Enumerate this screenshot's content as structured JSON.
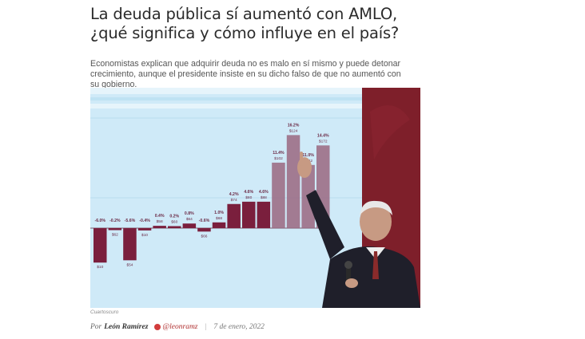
{
  "article": {
    "headline": "La deuda pública sí aumentó con AMLO, ¿qué significa y cómo influye en el país?",
    "summary": "Economistas explican que adquirir deuda no es malo en sí mismo y puede detonar crecimiento, aunque el presidente insiste en su dicho falso de que no aumentó con su gobierno.",
    "photo": {
      "caption": "Cuartoscuro",
      "chart_labels": [
        {
          "pct": "-6.0%",
          "val": "$10"
        },
        {
          "pct": "-0.2%",
          "val": "$62"
        },
        {
          "pct": "-5.6%",
          "val": "$54"
        },
        {
          "pct": "-0.4%",
          "val": "$10"
        },
        {
          "pct": "0.4%",
          "val": "$58"
        },
        {
          "pct": "0.2%",
          "val": "$60"
        },
        {
          "pct": "0.8%",
          "val": "$64"
        },
        {
          "pct": "-0.6%",
          "val": "$66"
        },
        {
          "pct": "1.0%",
          "val": "$68"
        },
        {
          "pct": "4.2%",
          "val": "$74"
        },
        {
          "pct": "4.6%",
          "val": "$80"
        },
        {
          "pct": "4.6%",
          "val": "$88"
        },
        {
          "pct": "11.4%",
          "val": "$102"
        },
        {
          "pct": "16.2%",
          "val": "$124"
        },
        {
          "pct": "11.0%",
          "val": "$142"
        },
        {
          "pct": "14.4%",
          "val": "$172"
        }
      ]
    },
    "byline": {
      "by": "Por",
      "author": "León Ramírez",
      "handle": "@leonramz",
      "separator": "|",
      "date": "7 de enero, 2022"
    }
  }
}
